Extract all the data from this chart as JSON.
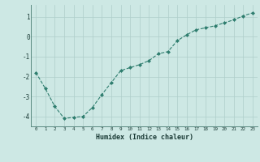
{
  "x": [
    0,
    1,
    2,
    3,
    4,
    5,
    6,
    7,
    8,
    9,
    10,
    11,
    12,
    13,
    14,
    15,
    16,
    17,
    18,
    19,
    20,
    21,
    22,
    23
  ],
  "y": [
    -1.8,
    -2.6,
    -3.5,
    -4.1,
    -4.05,
    -4.0,
    -3.55,
    -2.9,
    -2.3,
    -1.7,
    -1.55,
    -1.4,
    -1.2,
    -0.85,
    -0.75,
    -0.2,
    0.1,
    0.35,
    0.45,
    0.55,
    0.7,
    0.85,
    1.05,
    1.2
  ],
  "xlabel": "Humidex (Indice chaleur)",
  "line_color": "#2e7d6e",
  "marker_color": "#2e7d6e",
  "bg_color": "#cde8e4",
  "grid_color": "#aececa",
  "tick_label_color": "#1a3a35",
  "ylim": [
    -4.5,
    1.6
  ],
  "xlim": [
    -0.5,
    23.5
  ],
  "yticks": [
    -4,
    -3,
    -2,
    -1,
    0,
    1
  ],
  "xticks": [
    0,
    1,
    2,
    3,
    4,
    5,
    6,
    7,
    8,
    9,
    10,
    11,
    12,
    13,
    14,
    15,
    16,
    17,
    18,
    19,
    20,
    21,
    22,
    23
  ]
}
